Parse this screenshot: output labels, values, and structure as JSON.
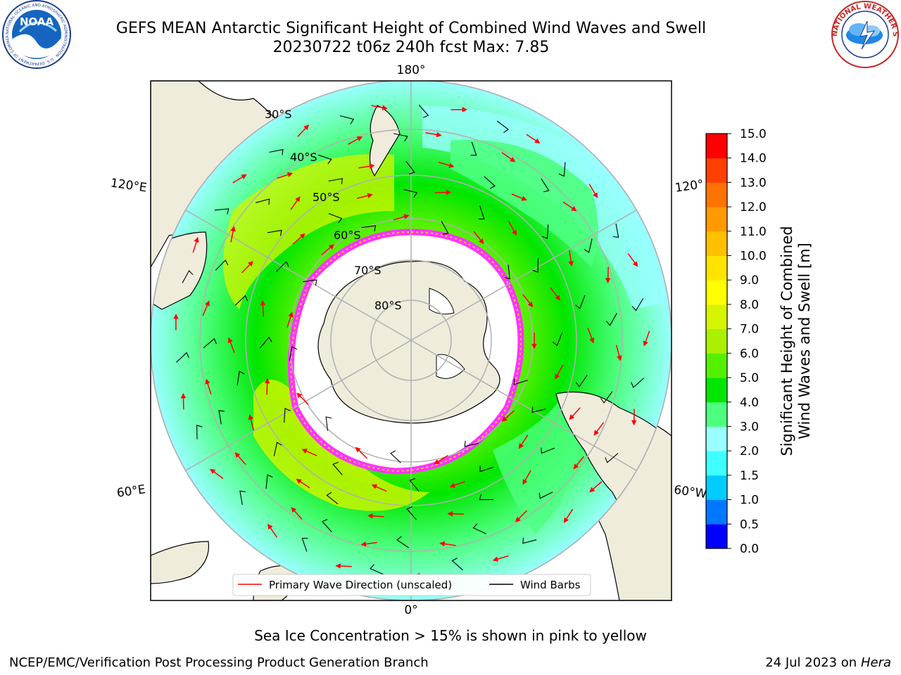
{
  "header": {
    "title_line1": "GEFS MEAN Antarctic Significant Height of Combined Wind Waves and Swell",
    "title_line2": "20230722 t06z 240h fcst   Max: 7.85",
    "noaa_logo_text": "NOAA",
    "noaa_ring_text": "NATIONAL OCEANIC AND ATMOSPHERIC ADMINISTRATION · U.S. DEPARTMENT OF COMMERCE",
    "nws_ring_text": "NATIONAL WEATHER SERVICE"
  },
  "map": {
    "projection": "south polar stereographic",
    "lon_labels": [
      {
        "text": "180°",
        "lon": 180
      },
      {
        "text": "120°E",
        "lon": 120
      },
      {
        "text": "120°",
        "lon": -120
      },
      {
        "text": "60°E",
        "lon": 60
      },
      {
        "text": "60°W",
        "lon": -60
      },
      {
        "text": "0°",
        "lon": 0
      }
    ],
    "lat_labels": [
      "30°S",
      "40°S",
      "50°S",
      "60°S",
      "70°S",
      "80°S"
    ],
    "legend": {
      "wave_label": "Primary Wave Direction (unscaled)",
      "wind_label": "Wind Barbs",
      "wave_color": "#ff0000",
      "wind_color": "#000000",
      "placement": "bottom-center"
    },
    "colors": {
      "land": "#efecdc",
      "ice": "#ffffff",
      "ice_edge": [
        "#ff33ff",
        "#ff66cc",
        "#ffcc33"
      ],
      "grid": "#b0b0b0"
    }
  },
  "colorbar": {
    "label_line1": "Significant Height of Combined",
    "label_line2": "Wind Waves and Swell [m]",
    "ticks": [
      "15.0",
      "14.0",
      "13.0",
      "12.0",
      "11.0",
      "10.0",
      "9.0",
      "8.0",
      "7.0",
      "6.0",
      "5.0",
      "4.0",
      "3.0",
      "2.0",
      "1.5",
      "1.0",
      "0.5",
      "0.0"
    ],
    "levels": [
      0,
      0.5,
      1,
      1.5,
      2,
      3,
      4,
      5,
      6,
      7,
      8,
      9,
      10,
      11,
      12,
      13,
      14,
      15
    ],
    "colors": [
      "#0000ff",
      "#0077ff",
      "#00ccff",
      "#40ffff",
      "#99ffff",
      "#4dff7f",
      "#00e600",
      "#55f000",
      "#aaf000",
      "#d6f500",
      "#ffff00",
      "#ffe400",
      "#ffc000",
      "#ff9900",
      "#ff7400",
      "#ff4000",
      "#ff0000"
    ]
  },
  "footer": {
    "note": "Sea Ice Concentration > 15% is shown in pink to yellow",
    "credit": "NCEP/EMC/Verification Post Processing Product Generation Branch",
    "date_prefix": "24 Jul 2023 on",
    "machine": "Hera"
  }
}
